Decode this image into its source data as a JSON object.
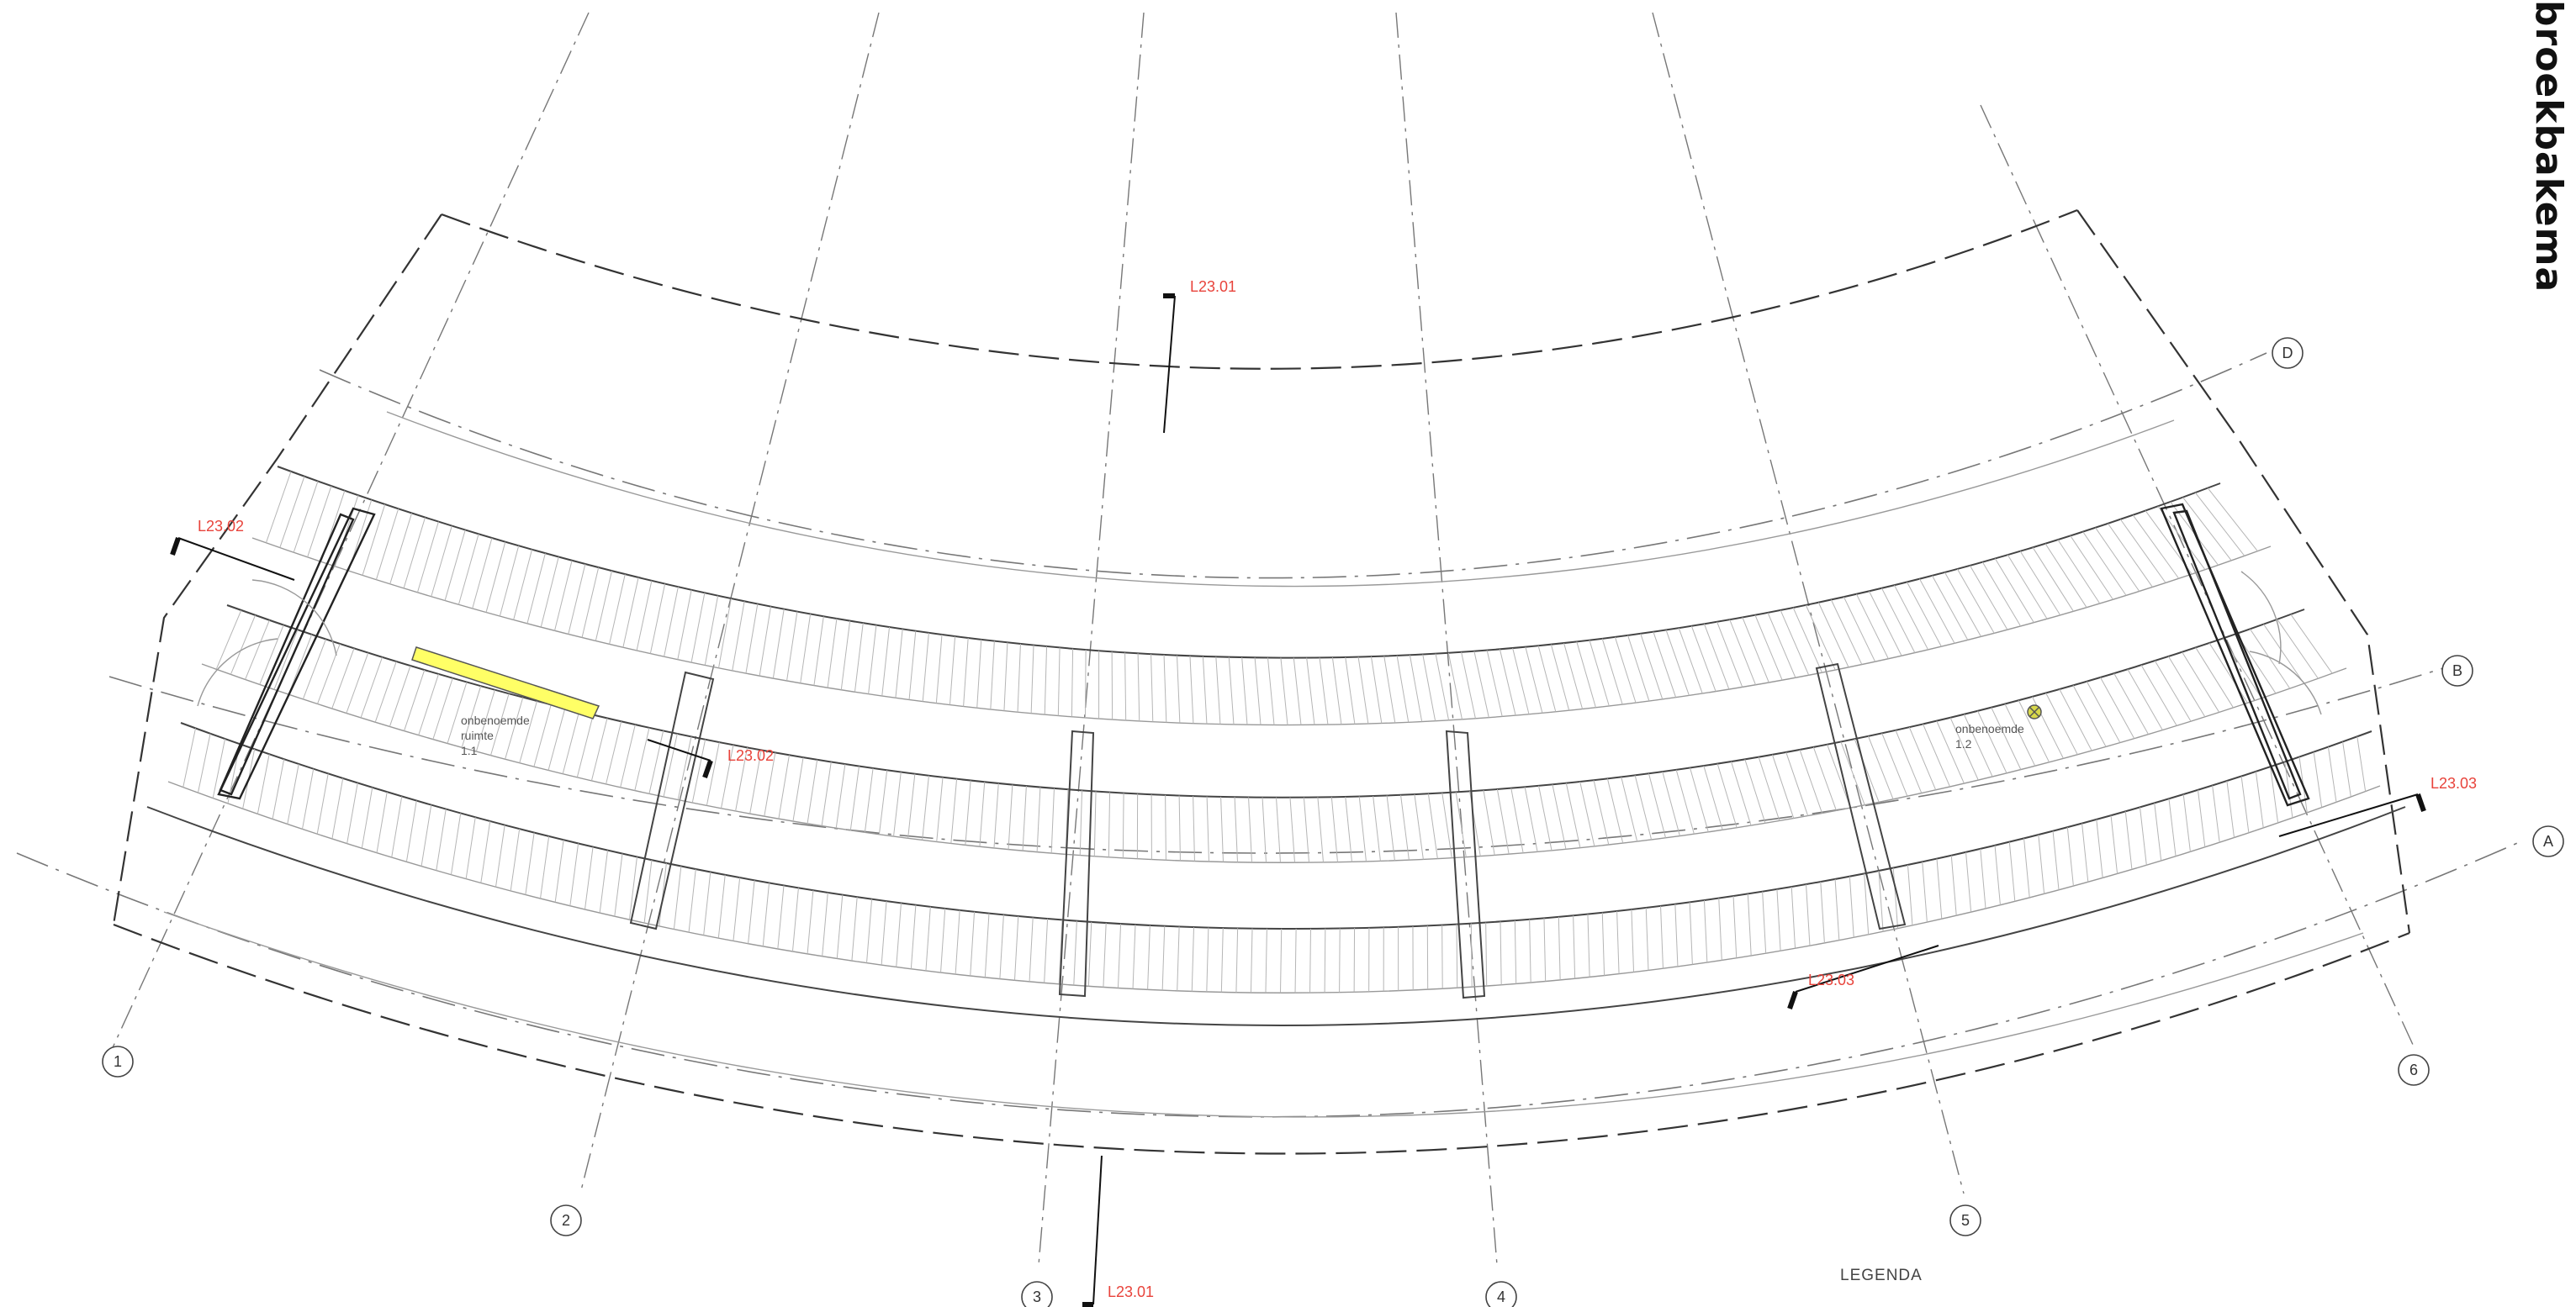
{
  "brand": "broekbakema",
  "legend_title": "LEGENDA",
  "grid_axes": {
    "radial": [
      "1",
      "2",
      "3",
      "4",
      "5",
      "6"
    ],
    "curved": [
      "D",
      "B",
      "A"
    ]
  },
  "section_markers": [
    {
      "id": "L23.01-top",
      "label": "L23.01"
    },
    {
      "id": "L23.01-bottom",
      "label": "L23.01"
    },
    {
      "id": "L23.02-left",
      "label": "L23.02"
    },
    {
      "id": "L23.02-mid",
      "label": "L23.02"
    },
    {
      "id": "L23.03-right",
      "label": "L23.03"
    },
    {
      "id": "L23.03-bottom",
      "label": "L23.03"
    }
  ],
  "rooms": [
    {
      "name_line1": "onbenoemde",
      "name_line2": "ruimte",
      "code": "1.1"
    },
    {
      "name_line1": "onbenoemde",
      "name_line2": "",
      "code": "1.2"
    }
  ],
  "colors": {
    "section_label": "#e8433b",
    "highlight": "#ffff66",
    "marker": "#d8d84a"
  }
}
